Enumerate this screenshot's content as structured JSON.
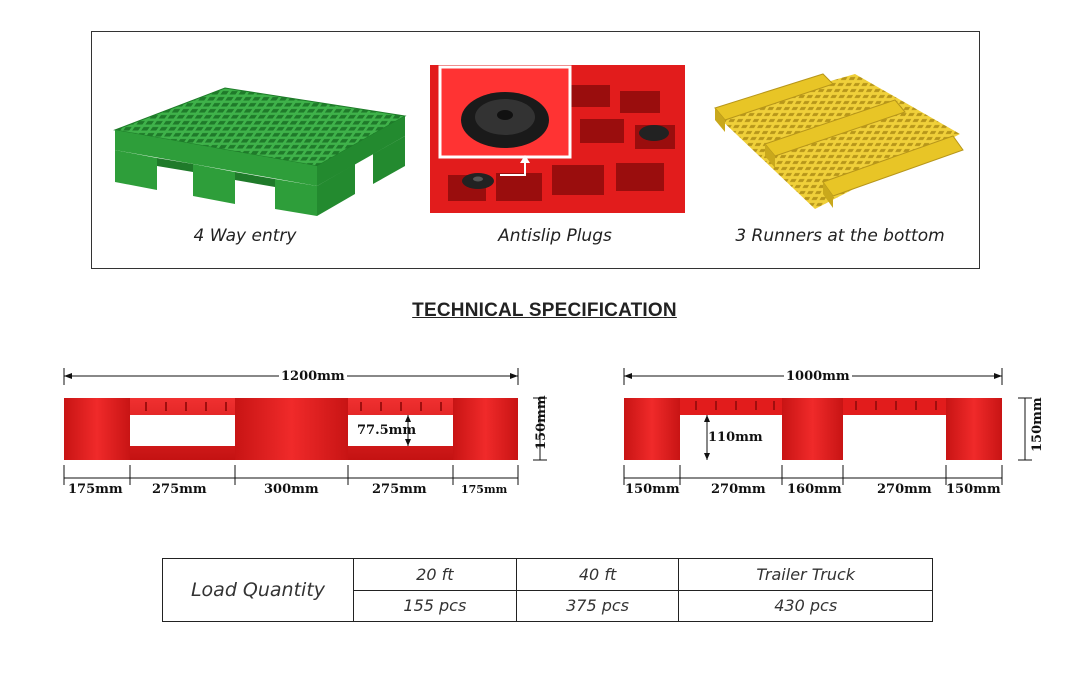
{
  "features": [
    {
      "name": "4-way-entry",
      "caption": "4 Way entry"
    },
    {
      "name": "antislip-plugs",
      "caption": "Antislip Plugs"
    },
    {
      "name": "three-runners",
      "caption": "3 Runners at the bottom"
    }
  ],
  "spec_title": "TECHNICAL SPECIFICATION",
  "long_side": {
    "overall": "1200mm",
    "height": "150mm",
    "opening_height": "77.5mm",
    "segments": [
      "175mm",
      "275mm",
      "300mm",
      "275mm",
      "175mm"
    ]
  },
  "short_side": {
    "overall": "1000mm",
    "height": "150mm",
    "opening_height": "110mm",
    "segments": [
      "150mm",
      "270mm",
      "160mm",
      "270mm",
      "150mm"
    ]
  },
  "load_table": {
    "label": "Load Quantity",
    "columns": [
      "20 ft",
      "40 ft",
      "Trailer Truck"
    ],
    "values": [
      "155 pcs",
      "375 pcs",
      "430 pcs"
    ]
  },
  "colors": {
    "pallet_green": "#2e9e3a",
    "pallet_red": "#e21c1c",
    "pallet_yellow": "#e8c526"
  }
}
